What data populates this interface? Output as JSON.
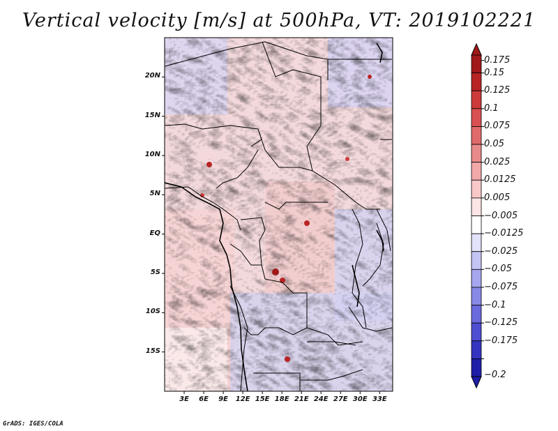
{
  "title": "Vertical velocity [m/s] at 500hPa, VT: 2019102221",
  "credit": "GrADS: IGES/COLA",
  "map": {
    "variable": "Vertical velocity",
    "units": "m/s",
    "level": "500hPa",
    "valid_time": "2019102221",
    "lon_range": [
      0,
      35
    ],
    "lat_range": [
      -20,
      25
    ],
    "lat_ticks": [
      {
        "value": 20,
        "label": "20N"
      },
      {
        "value": 15,
        "label": "15N"
      },
      {
        "value": 10,
        "label": "10N"
      },
      {
        "value": 5,
        "label": "5N"
      },
      {
        "value": 0,
        "label": "EQ"
      },
      {
        "value": -5,
        "label": "5S"
      },
      {
        "value": -10,
        "label": "10S"
      },
      {
        "value": -15,
        "label": "15S"
      }
    ],
    "lon_ticks": [
      {
        "value": 3,
        "label": "3E"
      },
      {
        "value": 6,
        "label": "6E"
      },
      {
        "value": 9,
        "label": "9E"
      },
      {
        "value": 12,
        "label": "12E"
      },
      {
        "value": 15,
        "label": "15E"
      },
      {
        "value": 18,
        "label": "18E"
      },
      {
        "value": 21,
        "label": "21E"
      },
      {
        "value": 24,
        "label": "24E"
      },
      {
        "value": 27,
        "label": "27E"
      },
      {
        "value": 30,
        "label": "30E"
      },
      {
        "value": 33,
        "label": "33E"
      }
    ]
  },
  "colorbar": {
    "levels": [
      {
        "label": "0.175",
        "color": "#a01818"
      },
      {
        "label": "0.15",
        "color": "#b82424"
      },
      {
        "label": "0.125",
        "color": "#cc3a3a"
      },
      {
        "label": "0.1",
        "color": "#d95050"
      },
      {
        "label": "0.075",
        "color": "#e06a6a"
      },
      {
        "label": "0.05",
        "color": "#e98a8a"
      },
      {
        "label": "0.025",
        "color": "#f2a8a8"
      },
      {
        "label": "0.0125",
        "color": "#f8c8c8"
      },
      {
        "label": "0.005",
        "color": "#fce4e4"
      },
      {
        "label": "−0.005",
        "color": "#ffffff"
      },
      {
        "label": "−0.0125",
        "color": "#e2e2fa"
      },
      {
        "label": "−0.025",
        "color": "#c4c4f4"
      },
      {
        "label": "−0.05",
        "color": "#a6a6ee"
      },
      {
        "label": "−0.075",
        "color": "#8888e6"
      },
      {
        "label": "−0.1",
        "color": "#6a6ade"
      },
      {
        "label": "−0.125",
        "color": "#4e4ed2"
      },
      {
        "label": "−0.175",
        "color": "#3434c0"
      },
      {
        "label": "−0.2",
        "color": "#1e1ea8"
      }
    ],
    "top_color": "#a01818",
    "bottom_color": "#1e1ea8"
  }
}
